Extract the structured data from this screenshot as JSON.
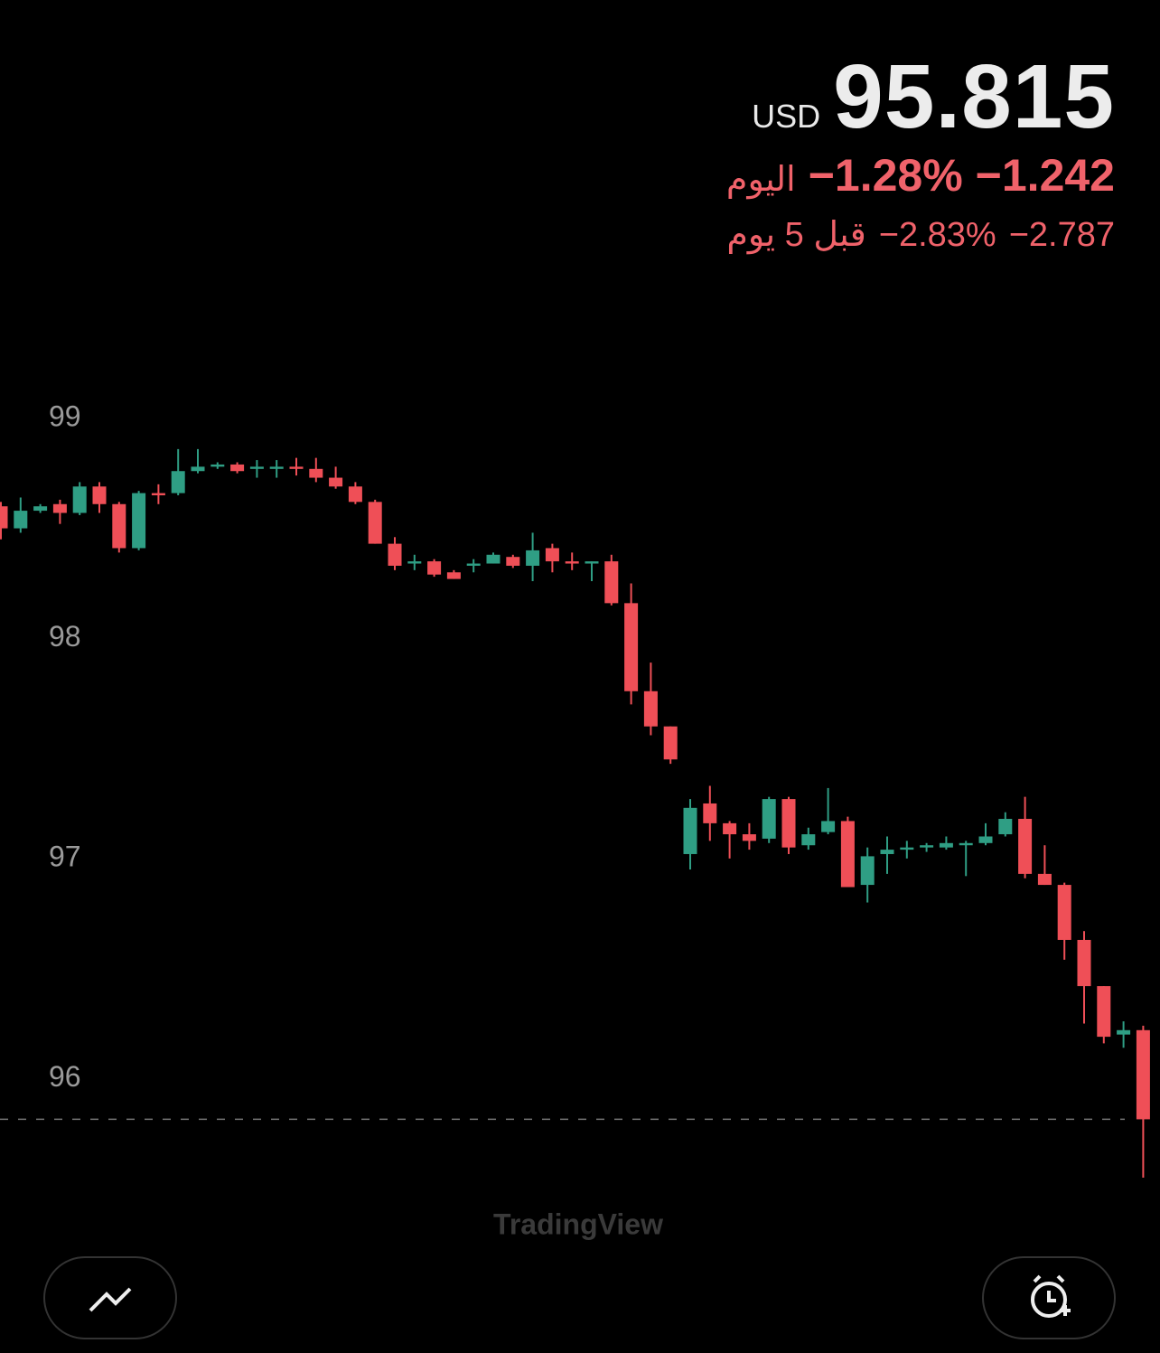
{
  "header": {
    "currency": "USD",
    "price": "95.815",
    "day_change": "−1.242",
    "day_pct": "−1.28%",
    "day_label": "اليوم",
    "week_change": "−2.787",
    "week_pct": "−2.83%",
    "week_label": "قبل 5 يوم"
  },
  "chart_data": {
    "type": "candlestick",
    "up_color": "#2f9e84",
    "down_color": "#ef4f57",
    "open": [
      98.6,
      98.5,
      98.58,
      98.61,
      98.57,
      98.69,
      98.61,
      98.41,
      98.66,
      98.66,
      98.76,
      98.78,
      98.79,
      98.77,
      98.77,
      98.78,
      98.77,
      98.73,
      98.69,
      98.62,
      98.43,
      98.34,
      98.35,
      98.3,
      98.33,
      98.34,
      98.37,
      98.33,
      98.41,
      98.35,
      98.34,
      98.35,
      98.16,
      97.76,
      97.6,
      97.02,
      97.25,
      97.16,
      97.11,
      97.09,
      97.27,
      97.06,
      97.12,
      97.17,
      96.88,
      97.02,
      97.04,
      97.05,
      97.05,
      97.06,
      97.07,
      97.11,
      97.18,
      96.93,
      96.88,
      96.63,
      96.42,
      96.2,
      96.22
    ],
    "high": [
      98.62,
      98.64,
      98.61,
      98.63,
      98.71,
      98.71,
      98.62,
      98.67,
      98.7,
      98.86,
      98.86,
      98.8,
      98.8,
      98.81,
      98.81,
      98.82,
      98.82,
      98.78,
      98.71,
      98.63,
      98.46,
      98.38,
      98.36,
      98.31,
      98.36,
      98.39,
      98.38,
      98.48,
      98.43,
      98.39,
      98.35,
      98.38,
      98.25,
      97.89,
      97.6,
      97.27,
      97.33,
      97.17,
      97.16,
      97.28,
      97.28,
      97.14,
      97.32,
      97.19,
      97.05,
      97.1,
      97.08,
      97.07,
      97.1,
      97.08,
      97.16,
      97.21,
      97.28,
      97.06,
      96.89,
      96.67,
      96.42,
      96.26,
      96.24
    ],
    "low": [
      98.45,
      98.48,
      98.57,
      98.52,
      98.56,
      98.57,
      98.39,
      98.4,
      98.61,
      98.65,
      98.75,
      98.77,
      98.75,
      98.73,
      98.73,
      98.74,
      98.71,
      98.68,
      98.61,
      98.43,
      98.31,
      98.31,
      98.28,
      98.27,
      98.3,
      98.34,
      98.32,
      98.26,
      98.3,
      98.31,
      98.26,
      98.15,
      97.7,
      97.56,
      97.43,
      96.95,
      97.08,
      97.0,
      97.04,
      97.07,
      97.02,
      97.04,
      97.11,
      96.87,
      96.8,
      96.93,
      97.0,
      97.03,
      97.04,
      96.92,
      97.06,
      97.1,
      96.91,
      96.88,
      96.54,
      96.25,
      96.16,
      96.14,
      95.55
    ],
    "close": [
      98.5,
      98.58,
      98.6,
      98.57,
      98.69,
      98.61,
      98.41,
      98.66,
      98.65,
      98.76,
      98.78,
      98.79,
      98.76,
      98.78,
      98.78,
      98.77,
      98.73,
      98.69,
      98.62,
      98.43,
      98.33,
      98.35,
      98.29,
      98.27,
      98.34,
      98.38,
      98.33,
      98.4,
      98.35,
      98.34,
      98.35,
      98.16,
      97.76,
      97.6,
      97.45,
      97.23,
      97.16,
      97.11,
      97.08,
      97.27,
      97.05,
      97.11,
      97.17,
      96.87,
      97.01,
      97.04,
      97.05,
      97.06,
      97.07,
      97.07,
      97.1,
      97.18,
      96.93,
      96.88,
      96.63,
      96.42,
      96.19,
      96.22,
      95.815
    ],
    "ylim": [
      95.48,
      99.34
    ],
    "yticks": [
      96,
      97,
      98,
      99
    ],
    "last_line": true,
    "watermark": "TradingView"
  }
}
